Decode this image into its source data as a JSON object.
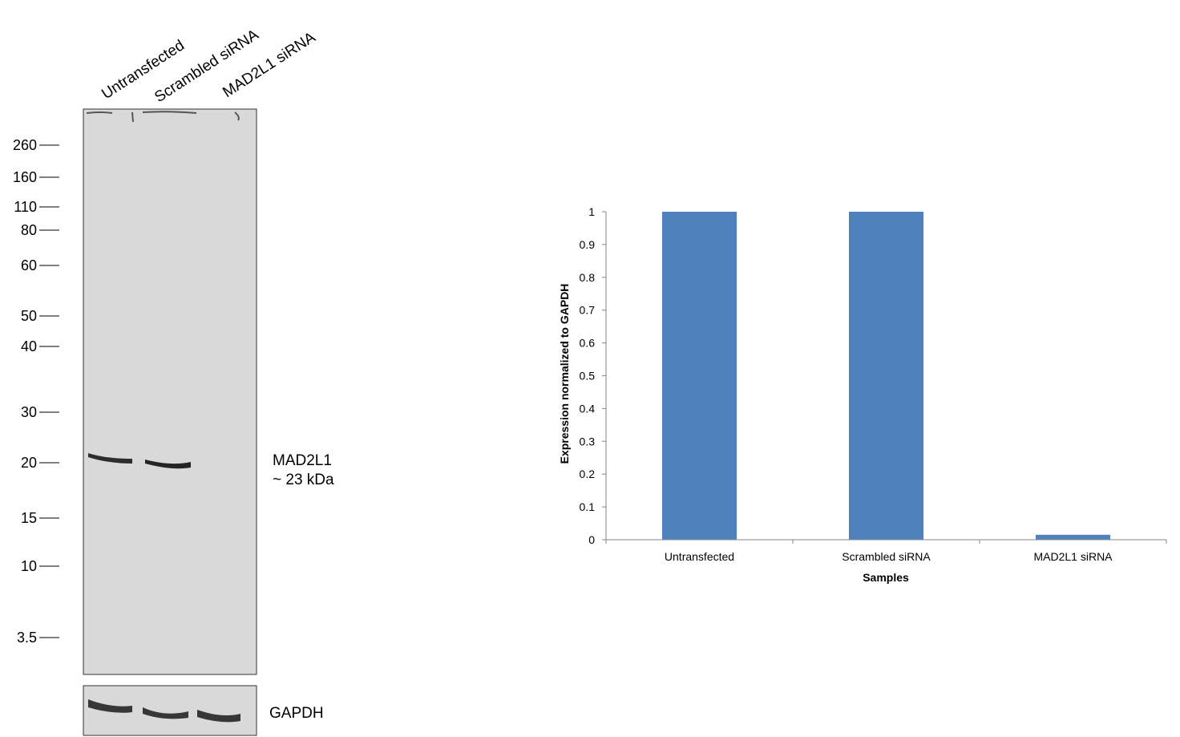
{
  "western_blot": {
    "lane_labels": [
      "Untransfected",
      "Scrambled siRNA",
      "MAD2L1 siRNA"
    ],
    "mw_markers": [
      "260",
      "160",
      "110",
      "80",
      "60",
      "50",
      "40",
      "30",
      "20",
      "15",
      "10",
      "3.5"
    ],
    "target_label_line1": "MAD2L1",
    "target_label_line2": "~ 23 kDa",
    "loading_control_label": "GAPDH",
    "colors": {
      "membrane": "#d9d9d9",
      "band": "#1a1a1a"
    }
  },
  "chart_data": {
    "type": "bar",
    "categories": [
      "Untransfected",
      "Scrambled siRNA",
      "MAD2L1 siRNA"
    ],
    "values": [
      1.0,
      1.0,
      0.015
    ],
    "title": "",
    "xlabel": "Samples",
    "ylabel": "Expression  normalized to GAPDH",
    "ylim": [
      0,
      1
    ],
    "yticks": [
      "0",
      "0.1",
      "0.2",
      "0.3",
      "0.4",
      "0.5",
      "0.6",
      "0.7",
      "0.8",
      "0.9",
      "1"
    ],
    "grid": false,
    "legend": "none",
    "bar_color": "#4f81bd"
  }
}
